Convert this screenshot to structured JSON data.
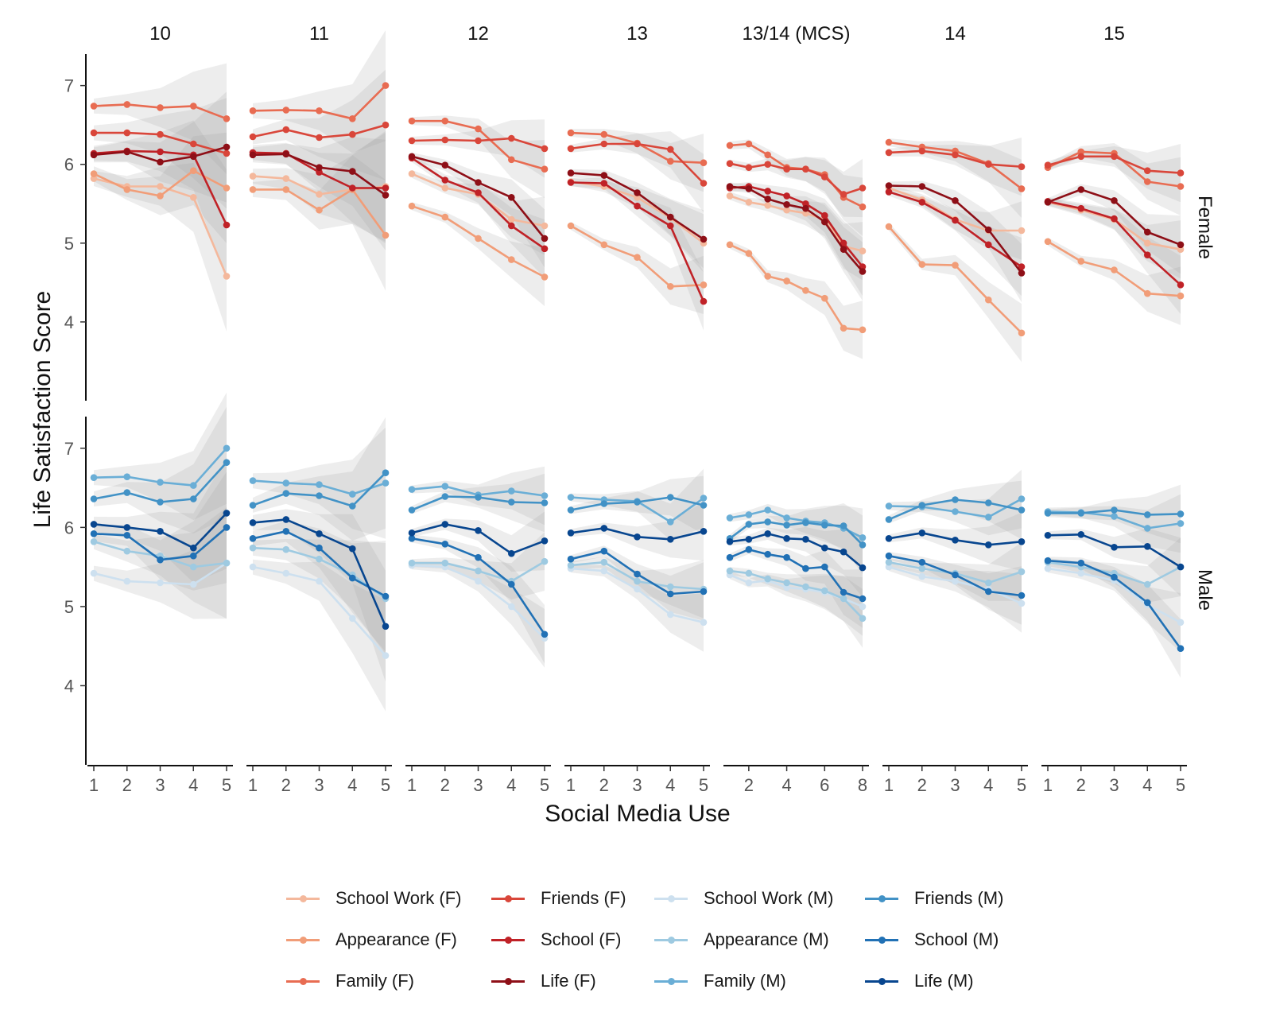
{
  "chart_data": {
    "type": "line",
    "ylabel": "Life Satisfaction Score",
    "xlabel": "Social Media Use",
    "ylim": [
      3,
      7.4
    ],
    "yticks": [
      4,
      5,
      6,
      7
    ],
    "rows": [
      "Female",
      "Male"
    ],
    "panels": [
      {
        "label": "10",
        "x": [
          1,
          2,
          3,
          4,
          5
        ],
        "xticks": [
          1,
          2,
          3,
          4,
          5
        ]
      },
      {
        "label": "11",
        "x": [
          1,
          2,
          3,
          4,
          5
        ],
        "xticks": [
          1,
          2,
          3,
          4,
          5
        ]
      },
      {
        "label": "12",
        "x": [
          1,
          2,
          3,
          4,
          5
        ],
        "xticks": [
          1,
          2,
          3,
          4,
          5
        ]
      },
      {
        "label": "13",
        "x": [
          1,
          2,
          3,
          4,
          5
        ],
        "xticks": [
          1,
          2,
          3,
          4,
          5
        ]
      },
      {
        "label": "13/14 (MCS)",
        "x": [
          1,
          2,
          3,
          4,
          5,
          6,
          7,
          8
        ],
        "xticks": [
          2,
          4,
          6,
          8
        ]
      },
      {
        "label": "14",
        "x": [
          1,
          2,
          3,
          4,
          5
        ],
        "xticks": [
          1,
          2,
          3,
          4,
          5
        ]
      },
      {
        "label": "15",
        "x": [
          1,
          2,
          3,
          4,
          5
        ],
        "xticks": [
          1,
          2,
          3,
          4,
          5
        ]
      }
    ],
    "series": [
      {
        "name": "School Work (F)",
        "row": "Female",
        "color": "#f4b89c",
        "values": [
          [
            5.82,
            5.72,
            5.72,
            5.58,
            4.58
          ],
          [
            5.85,
            5.82,
            5.62,
            5.68,
            5.72
          ],
          [
            5.88,
            5.7,
            5.62,
            5.3,
            5.22
          ],
          [
            5.78,
            5.72,
            5.58,
            5.32,
            5.0
          ],
          [
            5.6,
            5.52,
            5.48,
            5.42,
            5.38,
            5.3,
            4.96,
            4.9
          ],
          [
            5.7,
            5.55,
            5.3,
            5.16,
            5.16
          ],
          [
            5.52,
            5.42,
            5.3,
            5.0,
            4.92
          ]
        ]
      },
      {
        "name": "Appearance (F)",
        "row": "Female",
        "color": "#f19d78",
        "values": [
          [
            5.88,
            5.68,
            5.6,
            5.92,
            5.7
          ],
          [
            5.68,
            5.68,
            5.42,
            5.68,
            5.1
          ],
          [
            5.47,
            5.33,
            5.06,
            4.79,
            4.57
          ],
          [
            5.22,
            4.98,
            4.82,
            4.45,
            4.47
          ],
          [
            4.98,
            4.87,
            4.58,
            4.52,
            4.4,
            4.3,
            3.92,
            3.9
          ],
          [
            5.21,
            4.73,
            4.72,
            4.28,
            3.86
          ],
          [
            5.02,
            4.77,
            4.66,
            4.36,
            4.33
          ]
        ]
      },
      {
        "name": "Family (F)",
        "row": "Female",
        "color": "#e86c52",
        "values": [
          [
            6.74,
            6.76,
            6.72,
            6.74,
            6.58
          ],
          [
            6.68,
            6.69,
            6.68,
            6.58,
            7.0
          ],
          [
            6.55,
            6.55,
            6.45,
            6.06,
            5.94
          ],
          [
            6.4,
            6.38,
            6.27,
            6.04,
            6.02
          ],
          [
            6.24,
            6.26,
            6.12,
            5.96,
            5.94,
            5.87,
            5.58,
            5.46
          ],
          [
            6.28,
            6.22,
            6.17,
            6.01,
            5.69
          ],
          [
            5.96,
            6.16,
            6.14,
            5.78,
            5.72
          ]
        ]
      },
      {
        "name": "Friends (F)",
        "row": "Female",
        "color": "#d9463a",
        "values": [
          [
            6.4,
            6.4,
            6.38,
            6.26,
            6.14
          ],
          [
            6.35,
            6.44,
            6.34,
            6.38,
            6.5
          ],
          [
            6.3,
            6.31,
            6.3,
            6.33,
            6.2
          ],
          [
            6.2,
            6.26,
            6.26,
            6.19,
            5.76
          ],
          [
            6.01,
            5.96,
            6.0,
            5.94,
            5.94,
            5.84,
            5.62,
            5.7
          ],
          [
            6.15,
            6.17,
            6.12,
            6.0,
            5.97
          ],
          [
            5.99,
            6.1,
            6.1,
            5.92,
            5.89
          ]
        ]
      },
      {
        "name": "School (F)",
        "row": "Female",
        "color": "#c02227",
        "values": [
          [
            6.14,
            6.17,
            6.16,
            6.12,
            5.23
          ],
          [
            6.15,
            6.14,
            5.9,
            5.7,
            5.7
          ],
          [
            6.08,
            5.8,
            5.64,
            5.22,
            4.93
          ],
          [
            5.77,
            5.76,
            5.47,
            5.22,
            4.26
          ],
          [
            5.7,
            5.72,
            5.66,
            5.6,
            5.5,
            5.35,
            5.0,
            4.7
          ],
          [
            5.65,
            5.52,
            5.29,
            4.98,
            4.7
          ],
          [
            5.53,
            5.44,
            5.31,
            4.85,
            4.47
          ]
        ]
      },
      {
        "name": "Life (F)",
        "row": "Female",
        "color": "#8e0f17",
        "values": [
          [
            6.12,
            6.16,
            6.03,
            6.1,
            6.22
          ],
          [
            6.12,
            6.13,
            5.96,
            5.91,
            5.61
          ],
          [
            6.1,
            5.99,
            5.77,
            5.58,
            5.06
          ],
          [
            5.89,
            5.86,
            5.64,
            5.33,
            5.05
          ],
          [
            5.72,
            5.69,
            5.56,
            5.49,
            5.44,
            5.27,
            4.92,
            4.64
          ],
          [
            5.73,
            5.72,
            5.54,
            5.17,
            4.62
          ],
          [
            5.52,
            5.68,
            5.54,
            5.14,
            4.98
          ]
        ]
      },
      {
        "name": "School Work (M)",
        "row": "Male",
        "color": "#cde0ef",
        "values": [
          [
            5.42,
            5.32,
            5.3,
            5.28,
            5.55
          ],
          [
            5.5,
            5.42,
            5.32,
            4.85,
            4.38
          ],
          [
            5.52,
            5.5,
            5.32,
            5.0,
            4.6
          ],
          [
            5.48,
            5.45,
            5.22,
            4.9,
            4.8
          ],
          [
            5.4,
            5.3,
            5.33,
            5.24,
            5.22,
            5.18,
            5.1,
            5.0
          ],
          [
            5.5,
            5.38,
            5.32,
            5.22,
            5.04
          ],
          [
            5.48,
            5.42,
            5.33,
            5.02,
            4.8
          ]
        ]
      },
      {
        "name": "Appearance (M)",
        "row": "Male",
        "color": "#9ecae1",
        "values": [
          [
            5.82,
            5.7,
            5.64,
            5.5,
            5.55
          ],
          [
            5.74,
            5.72,
            5.6,
            5.4,
            5.1
          ],
          [
            5.55,
            5.55,
            5.45,
            5.32,
            5.57
          ],
          [
            5.52,
            5.56,
            5.32,
            5.25,
            5.22
          ],
          [
            5.45,
            5.42,
            5.35,
            5.3,
            5.25,
            5.2,
            5.1,
            4.85
          ],
          [
            5.56,
            5.48,
            5.42,
            5.3,
            5.44
          ],
          [
            5.56,
            5.5,
            5.42,
            5.28,
            5.5
          ]
        ]
      },
      {
        "name": "Family (M)",
        "row": "Male",
        "color": "#6aaed6",
        "values": [
          [
            6.63,
            6.64,
            6.57,
            6.53,
            7.0
          ],
          [
            6.59,
            6.56,
            6.54,
            6.42,
            6.56
          ],
          [
            6.48,
            6.52,
            6.41,
            6.46,
            6.4
          ],
          [
            6.38,
            6.35,
            6.33,
            6.07,
            6.37
          ],
          [
            6.12,
            6.16,
            6.22,
            6.12,
            6.08,
            6.06,
            5.99,
            5.87
          ],
          [
            6.27,
            6.26,
            6.2,
            6.13,
            6.36
          ],
          [
            6.2,
            6.19,
            6.14,
            5.99,
            6.05
          ]
        ]
      },
      {
        "name": "Friends (M)",
        "row": "Male",
        "color": "#4292c6",
        "values": [
          [
            6.36,
            6.44,
            6.32,
            6.36,
            6.82
          ],
          [
            6.28,
            6.43,
            6.4,
            6.27,
            6.69
          ],
          [
            6.22,
            6.39,
            6.38,
            6.32,
            6.31
          ],
          [
            6.22,
            6.3,
            6.32,
            6.38,
            6.28
          ],
          [
            5.86,
            6.04,
            6.07,
            6.03,
            6.06,
            6.03,
            6.02,
            5.78
          ],
          [
            6.1,
            6.28,
            6.35,
            6.31,
            6.22
          ],
          [
            6.18,
            6.18,
            6.22,
            6.16,
            6.17
          ]
        ]
      },
      {
        "name": "School (M)",
        "row": "Male",
        "color": "#2171b5",
        "values": [
          [
            5.92,
            5.9,
            5.59,
            5.64,
            6.0
          ],
          [
            5.86,
            5.95,
            5.74,
            5.36,
            5.13
          ],
          [
            5.86,
            5.79,
            5.62,
            5.28,
            4.65
          ],
          [
            5.6,
            5.7,
            5.41,
            5.16,
            5.19
          ],
          [
            5.62,
            5.72,
            5.66,
            5.62,
            5.48,
            5.5,
            5.18,
            5.1
          ],
          [
            5.64,
            5.56,
            5.4,
            5.19,
            5.14
          ],
          [
            5.58,
            5.55,
            5.37,
            5.05,
            4.47
          ]
        ]
      },
      {
        "name": "Life (M)",
        "row": "Male",
        "color": "#08468f",
        "values": [
          [
            6.04,
            6.0,
            5.95,
            5.74,
            6.18
          ],
          [
            6.06,
            6.1,
            5.92,
            5.73,
            4.75
          ],
          [
            5.93,
            6.04,
            5.96,
            5.67,
            5.83
          ],
          [
            5.93,
            5.99,
            5.88,
            5.85,
            5.95
          ],
          [
            5.82,
            5.85,
            5.92,
            5.86,
            5.85,
            5.74,
            5.69,
            5.49
          ],
          [
            5.86,
            5.93,
            5.84,
            5.78,
            5.82
          ],
          [
            5.9,
            5.91,
            5.75,
            5.76,
            5.5
          ]
        ]
      }
    ],
    "legend_placement": "bottom",
    "confidence_band": true
  }
}
